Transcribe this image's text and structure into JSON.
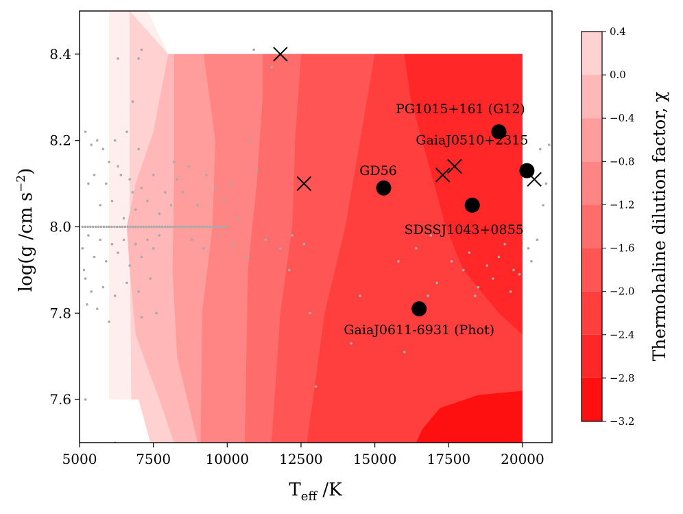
{
  "chart_data": {
    "type": "filled-contour-scatter",
    "x_axis": {
      "label_main": "T",
      "label_sub": "eff",
      "label_unit": " /K",
      "range": [
        5000,
        21000
      ],
      "ticks": [
        5000,
        7500,
        10000,
        12500,
        15000,
        17500,
        20000
      ]
    },
    "y_axis": {
      "label_main": "log(g /cm s",
      "label_sup": "−2",
      "label_close": ")",
      "range": [
        7.5,
        8.5
      ],
      "ticks": [
        "7.6",
        "7.8",
        "8.0",
        "8.2",
        "8.4"
      ]
    },
    "colorbar": {
      "label": "Thermohaline dilution factor, χ",
      "ticks": [
        "0.4",
        "0.0",
        "−0.4",
        "−0.8",
        "−1.2",
        "−1.6",
        "−2.0",
        "−2.4",
        "−2.8",
        "−3.2"
      ],
      "levels": [
        -3.2,
        -2.8,
        -2.4,
        -2.0,
        -1.6,
        -1.2,
        -0.8,
        -0.4,
        0.0,
        0.4
      ],
      "colors": [
        "#ff1010",
        "#ff2727",
        "#ff3e3e",
        "#ff5555",
        "#ff6c6c",
        "#ff8484",
        "#ff9d9d",
        "#ffb7b7",
        "#ffd1d1",
        "#ffeeee"
      ]
    },
    "contour_bands": [
      {
        "level": "0.0 to 0.4",
        "color": "#ffeeee",
        "boundary_teff": [
          [
            6000,
            8.5
          ],
          [
            6000,
            7.6
          ]
        ]
      },
      {
        "level": "-0.4 to 0.0",
        "color": "#ffd1d1",
        "boundary_teff": [
          [
            6700,
            8.5
          ],
          [
            6700,
            8.0
          ],
          [
            6750,
            7.6
          ],
          [
            7000,
            7.6
          ],
          [
            7400,
            7.5
          ]
        ]
      },
      {
        "level": "-0.8 to -0.4",
        "color": "#ffb7b7",
        "boundary_teff": [
          [
            7300,
            8.5
          ],
          [
            8000,
            8.4
          ],
          [
            7500,
            8.22
          ],
          [
            6900,
            8.1
          ],
          [
            6600,
            8.0
          ],
          [
            6700,
            7.9
          ],
          [
            6900,
            7.75
          ],
          [
            7700,
            7.6
          ],
          [
            8200,
            7.5
          ]
        ]
      },
      {
        "level": "-1.2 to -0.8",
        "color": "#ff9d9d",
        "boundary_teff": [
          [
            8200,
            8.4
          ],
          [
            8200,
            8.1
          ],
          [
            8150,
            7.9
          ],
          [
            8300,
            7.7
          ],
          [
            9000,
            7.5
          ]
        ]
      },
      {
        "level": "-1.6 to -1.2",
        "color": "#ff8484",
        "boundary_teff": [
          [
            9200,
            8.4
          ],
          [
            9600,
            8.2
          ],
          [
            9500,
            8.0
          ],
          [
            9150,
            7.8
          ],
          [
            9100,
            7.5
          ]
        ]
      },
      {
        "level": "-2.0 to -1.6",
        "color": "#ff6c6c",
        "boundary_teff": [
          [
            11200,
            8.4
          ],
          [
            11200,
            8.3
          ],
          [
            11000,
            8.1
          ],
          [
            10700,
            7.9
          ],
          [
            10600,
            7.5
          ]
        ]
      },
      {
        "level": "-2.4 to -2.0",
        "color": "#ff5555",
        "boundary_teff": [
          [
            12500,
            8.4
          ],
          [
            12300,
            8.2
          ],
          [
            12200,
            8.0
          ],
          [
            11800,
            7.8
          ],
          [
            11500,
            7.5
          ]
        ]
      },
      {
        "level": "-2.8 to -2.4",
        "color": "#ff3e3e",
        "boundary_teff": [
          [
            15000,
            8.4
          ],
          [
            14500,
            8.2
          ],
          [
            14000,
            8.0
          ],
          [
            13300,
            7.8
          ],
          [
            12900,
            7.6
          ],
          [
            12700,
            7.5
          ]
        ]
      },
      {
        "level": "-3.2 to -2.8",
        "color": "#ff2727",
        "boundary_teff": [
          [
            16000,
            8.4
          ],
          [
            16200,
            8.3
          ],
          [
            17000,
            8.1
          ],
          [
            17400,
            8.0
          ],
          [
            18000,
            7.9
          ],
          [
            19200,
            7.8
          ],
          [
            20000,
            7.75
          ]
        ]
      },
      {
        "level": "< -3.2",
        "color": "#ff1010",
        "boundary_teff": [
          [
            20000,
            7.62
          ],
          [
            18500,
            7.61
          ],
          [
            17200,
            7.58
          ],
          [
            16600,
            7.53
          ],
          [
            16400,
            7.5
          ]
        ]
      }
    ],
    "named_stars": [
      {
        "name": "PG1015+161 (G12)",
        "teff": 19200,
        "logg": 8.22
      },
      {
        "name": "GaiaJ0510+2315",
        "teff": 20150,
        "logg": 8.13
      },
      {
        "name": "GD56",
        "teff": 15300,
        "logg": 8.09
      },
      {
        "name": "SDSSJ1043+0855",
        "teff": 18300,
        "logg": 8.05
      },
      {
        "name": "GaiaJ0611-6931 (Phot)",
        "teff": 16500,
        "logg": 7.81
      }
    ],
    "cross_markers": [
      {
        "teff": 11800,
        "logg": 8.4
      },
      {
        "teff": 12600,
        "logg": 8.1
      },
      {
        "teff": 17300,
        "logg": 8.12
      },
      {
        "teff": 17700,
        "logg": 8.14
      },
      {
        "teff": 20400,
        "logg": 8.11
      }
    ],
    "background_sample": [
      [
        5200,
        8.22
      ],
      [
        5400,
        8.19
      ],
      [
        5600,
        8.2
      ],
      [
        5800,
        8.18
      ],
      [
        6000,
        8.15
      ],
      [
        6200,
        8.2
      ],
      [
        6400,
        8.12
      ],
      [
        6600,
        8.22
      ],
      [
        6800,
        8.08
      ],
      [
        7000,
        8.18
      ],
      [
        5300,
        8.1
      ],
      [
        5500,
        8.12
      ],
      [
        5700,
        8.05
      ],
      [
        5900,
        8.1
      ],
      [
        6100,
        8.06
      ],
      [
        6300,
        8.14
      ],
      [
        6500,
        8.02
      ],
      [
        6700,
        8.11
      ],
      [
        6900,
        8.04
      ],
      [
        7100,
        8.09
      ],
      [
        7300,
        8.06
      ],
      [
        7500,
        8.12
      ],
      [
        7700,
        8.03
      ],
      [
        7900,
        8.08
      ],
      [
        8100,
        8.05
      ],
      [
        8300,
        8.11
      ],
      [
        5100,
        7.95
      ],
      [
        5300,
        7.98
      ],
      [
        5500,
        7.93
      ],
      [
        5700,
        7.97
      ],
      [
        5900,
        7.92
      ],
      [
        6100,
        7.96
      ],
      [
        6300,
        7.94
      ],
      [
        6500,
        7.97
      ],
      [
        6700,
        7.91
      ],
      [
        6900,
        7.96
      ],
      [
        7100,
        7.93
      ],
      [
        7300,
        7.97
      ],
      [
        7500,
        7.95
      ],
      [
        7700,
        7.98
      ],
      [
        5200,
        7.88
      ],
      [
        5400,
        7.85
      ],
      [
        5800,
        7.86
      ],
      [
        6200,
        7.84
      ],
      [
        6600,
        7.87
      ],
      [
        7000,
        7.85
      ],
      [
        7400,
        7.88
      ],
      [
        5150,
        7.9
      ],
      [
        5250,
        7.82
      ],
      [
        5600,
        7.81
      ],
      [
        6000,
        7.78
      ],
      [
        7100,
        7.79
      ],
      [
        7600,
        7.8
      ],
      [
        5200,
        7.6
      ],
      [
        6200,
        7.5
      ],
      [
        6800,
        8.29
      ],
      [
        7000,
        8.39
      ],
      [
        7100,
        8.41
      ],
      [
        6300,
        8.39
      ],
      [
        8200,
        8.15
      ],
      [
        8500,
        8.08
      ],
      [
        8700,
        8.14
      ],
      [
        9000,
        8.05
      ],
      [
        9300,
        8.12
      ],
      [
        9600,
        8.09
      ],
      [
        9900,
        8.06
      ],
      [
        10100,
        8.1
      ],
      [
        10400,
        8.02
      ],
      [
        10800,
        8.2
      ],
      [
        11000,
        8.13
      ],
      [
        8800,
        7.97
      ],
      [
        9200,
        7.95
      ],
      [
        9700,
        7.98
      ],
      [
        10200,
        7.96
      ],
      [
        10700,
        7.93
      ],
      [
        11300,
        7.97
      ],
      [
        11800,
        7.95
      ],
      [
        12200,
        7.98
      ],
      [
        12600,
        7.96
      ],
      [
        10900,
        8.41
      ],
      [
        11500,
        8.37
      ],
      [
        12800,
        7.8
      ],
      [
        13000,
        7.63
      ],
      [
        12100,
        7.9
      ],
      [
        14200,
        7.73
      ],
      [
        14500,
        7.84
      ],
      [
        15800,
        7.92
      ],
      [
        16000,
        7.71
      ],
      [
        16400,
        7.95
      ],
      [
        16800,
        7.84
      ],
      [
        17100,
        7.87
      ],
      [
        17600,
        7.92
      ],
      [
        18000,
        7.9
      ],
      [
        18200,
        7.94
      ],
      [
        18500,
        7.86
      ],
      [
        18800,
        7.91
      ],
      [
        19000,
        7.88
      ],
      [
        19200,
        7.93
      ],
      [
        19400,
        7.96
      ],
      [
        19600,
        7.85
      ],
      [
        19900,
        7.89
      ],
      [
        20300,
        7.92
      ],
      [
        20500,
        7.97
      ],
      [
        20700,
        8.05
      ],
      [
        20800,
        8.1
      ],
      [
        20900,
        8.19
      ],
      [
        20600,
        8.18
      ],
      [
        20200,
        7.95
      ],
      [
        19700,
        7.9
      ],
      [
        18400,
        7.84
      ],
      [
        16900,
        7.98
      ]
    ]
  }
}
